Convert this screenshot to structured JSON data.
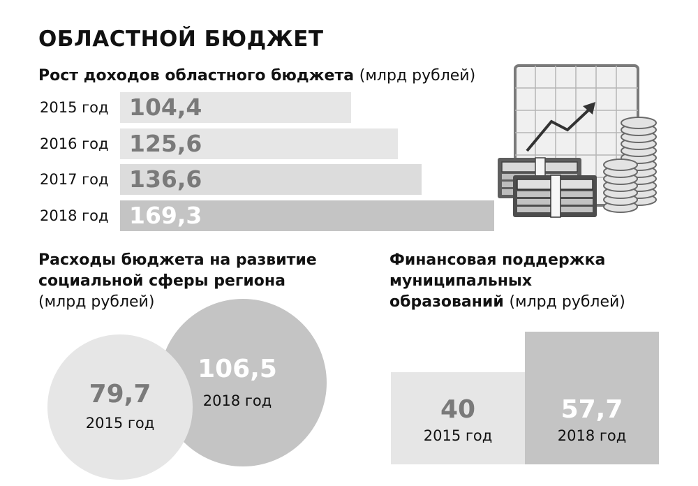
{
  "title": "ОБЛАСТНОЙ БЮДЖЕТ",
  "colors": {
    "light": "#e6e6e6",
    "mid": "#dcdcdc",
    "dark": "#c4c4c4",
    "text_dark": "#7a7a7a",
    "text_light": "#ffffff"
  },
  "chart_data": [
    {
      "type": "bar",
      "orientation": "horizontal",
      "title": "Рост доходов областного бюджета",
      "unit": "(млрд рублей)",
      "categories": [
        "2015 год",
        "2016 год",
        "2017 год",
        "2018 год"
      ],
      "values": [
        104.4,
        125.6,
        136.6,
        169.3
      ],
      "value_labels": [
        "104,4",
        "125,6",
        "136,6",
        "169,3"
      ]
    },
    {
      "type": "bubble",
      "title": "Расходы бюджета на развитие социальной сферы региона",
      "unit": "(млрд рублей)",
      "categories": [
        "2015 год",
        "2018 год"
      ],
      "values": [
        79.7,
        106.5
      ],
      "value_labels": [
        "79,7",
        "106,5"
      ]
    },
    {
      "type": "bar",
      "title": "Финансовая поддержка муниципальных образований",
      "title_lines": [
        "Финансовая поддержка",
        "муниципальных",
        "образований"
      ],
      "unit": "(млрд рублей)",
      "categories": [
        "2015 год",
        "2018 год"
      ],
      "values": [
        40,
        57.7
      ],
      "value_labels": [
        "40",
        "57,7"
      ]
    }
  ],
  "illustration": {
    "icon": "finance-growth-icon",
    "elements": [
      "chart-board",
      "money-stacks",
      "coin-stacks"
    ]
  }
}
